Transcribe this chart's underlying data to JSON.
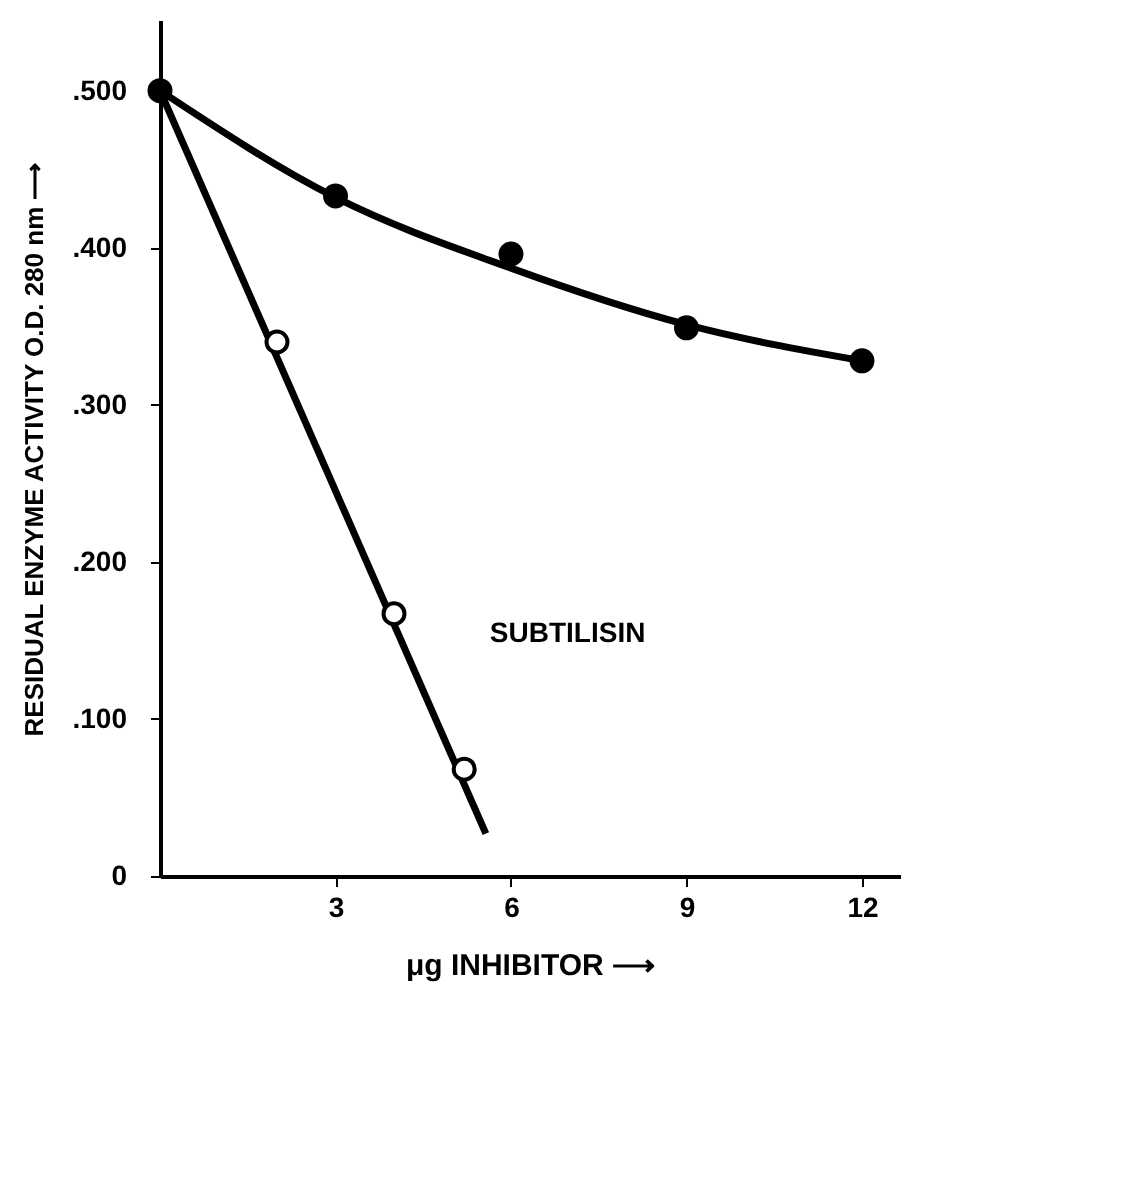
{
  "chart_data": {
    "type": "line",
    "xlabel": "μg INHIBITOR ⟶",
    "ylabel": "RESIDUAL ENZYME ACTIVITY O.D. 280 nm ⟶",
    "xlim": [
      0,
      12.65
    ],
    "xticks": [
      3,
      6,
      9,
      12
    ],
    "ylim": [
      0,
      0.545
    ],
    "yticks": [
      0,
      {
        "value": 0.1,
        "label": ".100"
      },
      {
        "value": 0.2,
        "label": ".200"
      },
      {
        "value": 0.3,
        "label": ".300"
      },
      {
        "value": 0.4,
        "label": ".400"
      },
      {
        "value": 0.5,
        "label": ".500"
      }
    ],
    "grid": false,
    "line_style": "solid",
    "series": [
      {
        "color": "#000000",
        "marker": "none",
        "x": [
          0,
          3,
          6,
          9,
          12
        ],
        "values": [
          0.5,
          0.432,
          0.387,
          0.351,
          0.328
        ]
      },
      {
        "type": "scatter",
        "marker": "circle",
        "color": "#000000",
        "x": [
          0,
          3,
          6,
          9,
          12
        ],
        "values": [
          0.5,
          0.433,
          0.396,
          0.349,
          0.328
        ]
      },
      {
        "name": "SUBTILISIN",
        "marker": "none",
        "color": "#000000",
        "x": [
          0,
          5.57
        ],
        "values": [
          0.5,
          0.027
        ]
      },
      {
        "type": "scatter",
        "marker": "circle",
        "color": "#ffffff",
        "x": [
          2,
          4,
          5.2
        ],
        "values": [
          0.34,
          0.167,
          0.068
        ]
      }
    ]
  }
}
